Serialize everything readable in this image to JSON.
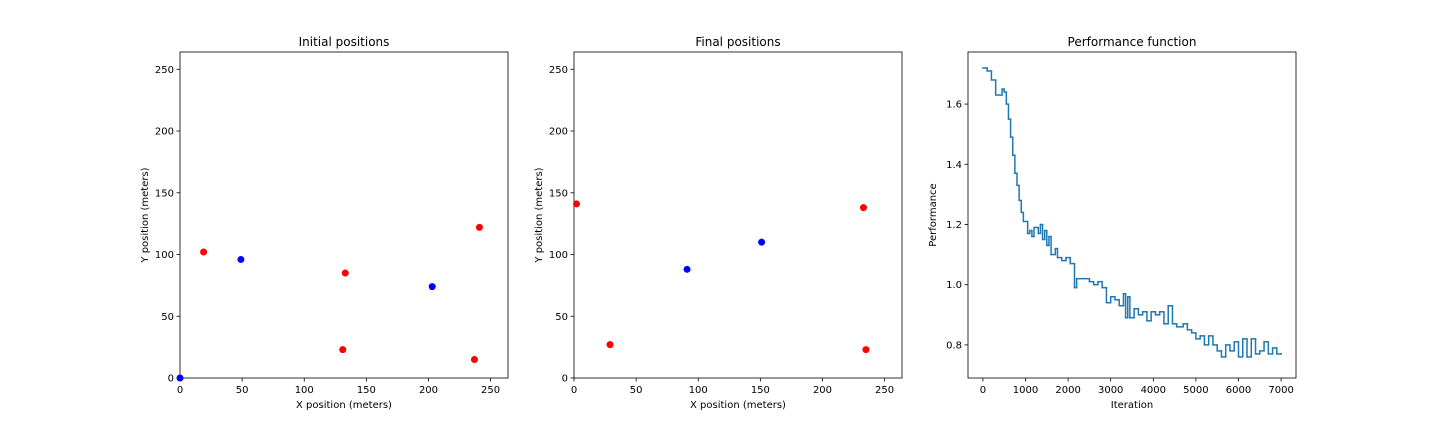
{
  "chart_data": [
    {
      "type": "scatter",
      "title": "Initial positions",
      "xlabel": "X position (meters)",
      "ylabel": "Y position (meters)",
      "xlim": [
        0,
        264
      ],
      "ylim": [
        0,
        264
      ],
      "xticks": [
        0,
        50,
        100,
        150,
        200,
        250
      ],
      "yticks": [
        0,
        50,
        100,
        150,
        200,
        250
      ],
      "series": [
        {
          "color": "#ff0000",
          "x": [
            19,
            133,
            131,
            241,
            237
          ],
          "values": [
            102,
            85,
            23,
            122,
            15
          ]
        },
        {
          "color": "#0000ff",
          "x": [
            49,
            203,
            0
          ],
          "values": [
            96,
            74,
            0
          ]
        }
      ]
    },
    {
      "type": "scatter",
      "title": "Final positions",
      "xlabel": "X position (meters)",
      "ylabel": "Y position (meters)",
      "xlim": [
        0,
        264
      ],
      "ylim": [
        0,
        264
      ],
      "xticks": [
        0,
        50,
        100,
        150,
        200,
        250
      ],
      "yticks": [
        0,
        50,
        100,
        150,
        200,
        250
      ],
      "series": [
        {
          "color": "#ff0000",
          "x": [
            2,
            29,
            233,
            235
          ],
          "values": [
            141,
            27,
            138,
            23
          ]
        },
        {
          "color": "#0000ff",
          "x": [
            91,
            151
          ],
          "values": [
            88,
            110
          ]
        }
      ]
    },
    {
      "type": "line",
      "title": "Performance function",
      "xlabel": "Iteration",
      "ylabel": "Performance",
      "drawstyle": "steps-post",
      "xlim": [
        -350,
        7350
      ],
      "ylim": [
        0.69,
        1.773
      ],
      "xticks": [
        0,
        1000,
        2000,
        3000,
        4000,
        5000,
        6000,
        7000
      ],
      "yticks": [
        0.8,
        {
          "value": 1.0,
          "label": "1.0"
        },
        1.2,
        1.4,
        1.6
      ],
      "series": [
        {
          "color": "#1f77b4",
          "x": [
            0,
            100,
            200,
            300,
            450,
            500,
            550,
            600,
            650,
            700,
            750,
            800,
            850,
            900,
            950,
            1050,
            1100,
            1150,
            1200,
            1300,
            1350,
            1400,
            1450,
            1500,
            1550,
            1600,
            1700,
            1750,
            1850,
            1950,
            2050,
            2150,
            2200,
            2500,
            2600,
            2700,
            2800,
            2900,
            3000,
            3100,
            3200,
            3300,
            3350,
            3400,
            3450,
            3550,
            3650,
            3750,
            3850,
            3950,
            4050,
            4150,
            4250,
            4350,
            4450,
            4550,
            4700,
            4800,
            4900,
            5000,
            5100,
            5200,
            5300,
            5400,
            5500,
            5600,
            5700,
            5800,
            5900,
            6000,
            6100,
            6200,
            6300,
            6400,
            6500,
            6600,
            6700,
            6800,
            6900,
            7000
          ],
          "values": [
            1.72,
            1.71,
            1.68,
            1.63,
            1.65,
            1.64,
            1.6,
            1.55,
            1.49,
            1.43,
            1.37,
            1.33,
            1.28,
            1.24,
            1.21,
            1.17,
            1.18,
            1.16,
            1.19,
            1.17,
            1.2,
            1.15,
            1.18,
            1.13,
            1.16,
            1.1,
            1.12,
            1.09,
            1.08,
            1.09,
            1.07,
            0.99,
            1.02,
            1.01,
            1.0,
            1.01,
            0.99,
            0.94,
            0.96,
            0.95,
            0.93,
            0.97,
            0.89,
            0.96,
            0.89,
            0.92,
            0.9,
            0.91,
            0.88,
            0.91,
            0.9,
            0.91,
            0.87,
            0.93,
            0.87,
            0.86,
            0.87,
            0.85,
            0.84,
            0.82,
            0.83,
            0.8,
            0.83,
            0.8,
            0.78,
            0.76,
            0.8,
            0.78,
            0.81,
            0.76,
            0.82,
            0.76,
            0.82,
            0.77,
            0.78,
            0.81,
            0.77,
            0.79,
            0.77,
            0.77
          ]
        }
      ]
    }
  ]
}
